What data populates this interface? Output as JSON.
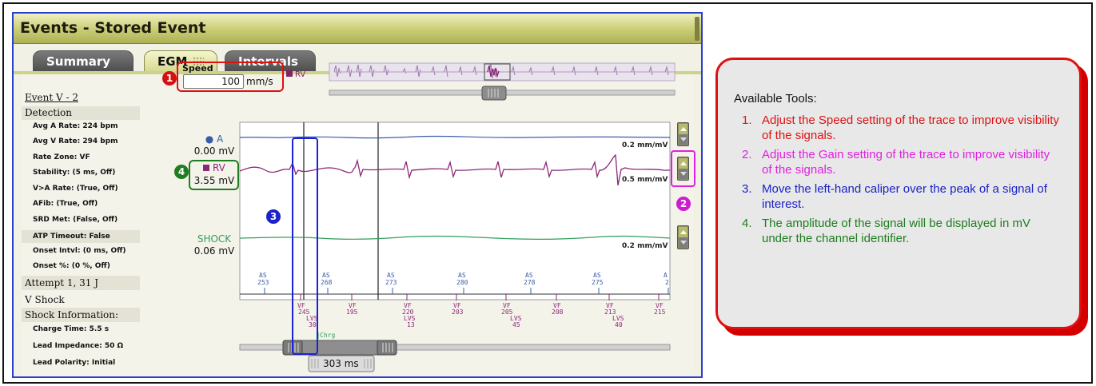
{
  "window": {
    "title": "Events - Stored Event"
  },
  "tabs": [
    {
      "label": "Summary",
      "active": false
    },
    {
      "label": "EGM",
      "active": true
    },
    {
      "label": "Intervals",
      "active": false
    }
  ],
  "sidebar": {
    "event_title": "Event V - 2",
    "detection_heading": "Detection",
    "detection_items": [
      "Avg A Rate: 224 bpm",
      "Avg V Rate: 294 bpm",
      "Rate Zone: VF",
      "Stability: (5 ms, Off)",
      "V>A Rate: (True, Off)",
      "AFib: (True, Off)",
      "SRD Met: (False, Off)",
      "ATP Timeout: False",
      "Onset Intvl: (0 ms, Off)",
      "Onset %: (0 %, Off)"
    ],
    "attempt": "Attempt 1, 31 J",
    "shock_type": "V Shock",
    "shock_heading": "Shock Information:",
    "shock_items": [
      "Charge Time: 5.5 s",
      "Lead Impedance: 50 Ω",
      "Lead Polarity: Initial"
    ]
  },
  "speed": {
    "label": "Speed",
    "value": "100",
    "unit": "mm/s"
  },
  "overview": {
    "legend": "RV"
  },
  "channels": {
    "a": {
      "name": "A",
      "amplitude": "0.00 mV",
      "scale": "0.2 mm/mV",
      "color": "#3a5ca8"
    },
    "rv": {
      "name": "RV",
      "amplitude": "3.55 mV",
      "scale": "0.5 mm/mV",
      "color": "#8c2878"
    },
    "shock": {
      "name": "SHOCK",
      "amplitude": "0.06 mV",
      "scale": "0.2 mm/mV",
      "color": "#2e9e5a"
    }
  },
  "markers": {
    "atrial": [
      {
        "label": "AS",
        "value": "253"
      },
      {
        "label": "AS",
        "value": "268"
      },
      {
        "label": "AS",
        "value": "273"
      },
      {
        "label": "AS",
        "value": "280"
      },
      {
        "label": "AS",
        "value": "278"
      },
      {
        "label": "AS",
        "value": "275"
      },
      {
        "label": "A",
        "value": "2"
      }
    ],
    "ventricular": [
      {
        "label": "VF",
        "value": "245",
        "extra": "LVS",
        "extra_value": "30"
      },
      {
        "label": "VF",
        "value": "195"
      },
      {
        "label": "VF",
        "value": "220",
        "extra": "LVS",
        "extra_value": "13"
      },
      {
        "label": "VF",
        "value": "203"
      },
      {
        "label": "VF",
        "value": "205",
        "extra": "LVS",
        "extra_value": "45"
      },
      {
        "label": "VF",
        "value": "208"
      },
      {
        "label": "VF",
        "value": "213",
        "extra": "LVS",
        "extra_value": "40"
      },
      {
        "label": "VF",
        "value": "215"
      }
    ],
    "charge_label": "Chrg"
  },
  "caliper": {
    "interval": "303 ms"
  },
  "badges": [
    "1",
    "2",
    "3",
    "4"
  ],
  "tools": {
    "title": "Available Tools:",
    "items": [
      {
        "num": "1.",
        "text": "Adjust the Speed setting of the trace to improve visibility of the signals.",
        "color": "#e01010"
      },
      {
        "num": "2.",
        "text": "Adjust the Gain setting of the trace to improve visibility of the signals.",
        "color": "#e020e0"
      },
      {
        "num": "3.",
        "text": "Move the left-hand caliper over the peak of a signal of interest.",
        "color": "#1a22c8"
      },
      {
        "num": "4.",
        "text": "The amplitude of the signal will be displayed in mV under the channel identifier.",
        "color": "#1e7d1e"
      }
    ]
  },
  "colors": {
    "title_bar": "#c9cc74",
    "highlight_speed": "#e01010",
    "highlight_gain": "#e020e0",
    "highlight_caliper": "#1a22d8",
    "highlight_amplitude": "#1e7d1e"
  }
}
